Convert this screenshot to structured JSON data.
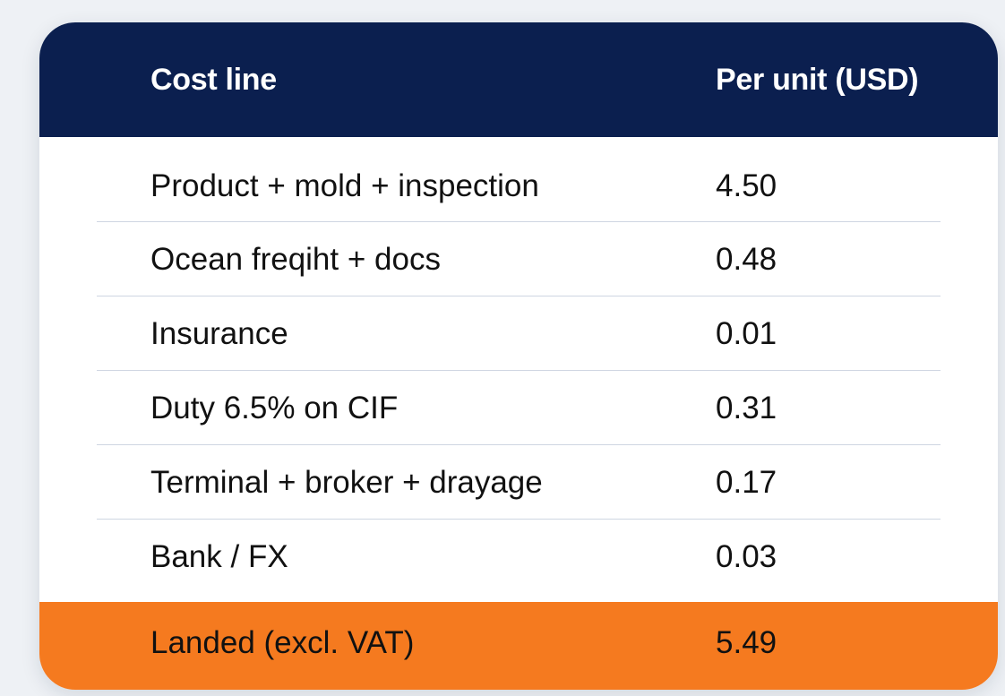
{
  "table": {
    "header": {
      "cost_line": "Cost line",
      "per_unit": "Per unit (USD)"
    },
    "rows": [
      {
        "label": "Product + mold + inspection",
        "value": "4.50"
      },
      {
        "label": "Ocean freqiht + docs",
        "value": "0.48"
      },
      {
        "label": "Insurance",
        "value": "0.01"
      },
      {
        "label": "Duty 6.5% on CIF",
        "value": "0.31"
      },
      {
        "label": "Terminal + broker + drayage",
        "value": "0.17"
      },
      {
        "label": "Bank / FX",
        "value": "0.03"
      }
    ],
    "total": {
      "label": "Landed (excl. VAT)",
      "value": "5.49"
    }
  },
  "colors": {
    "header_bg": "#0b1f4f",
    "total_bg": "#f57a1f",
    "divider": "#cfd6e2",
    "page_bg": "#eef1f5"
  }
}
